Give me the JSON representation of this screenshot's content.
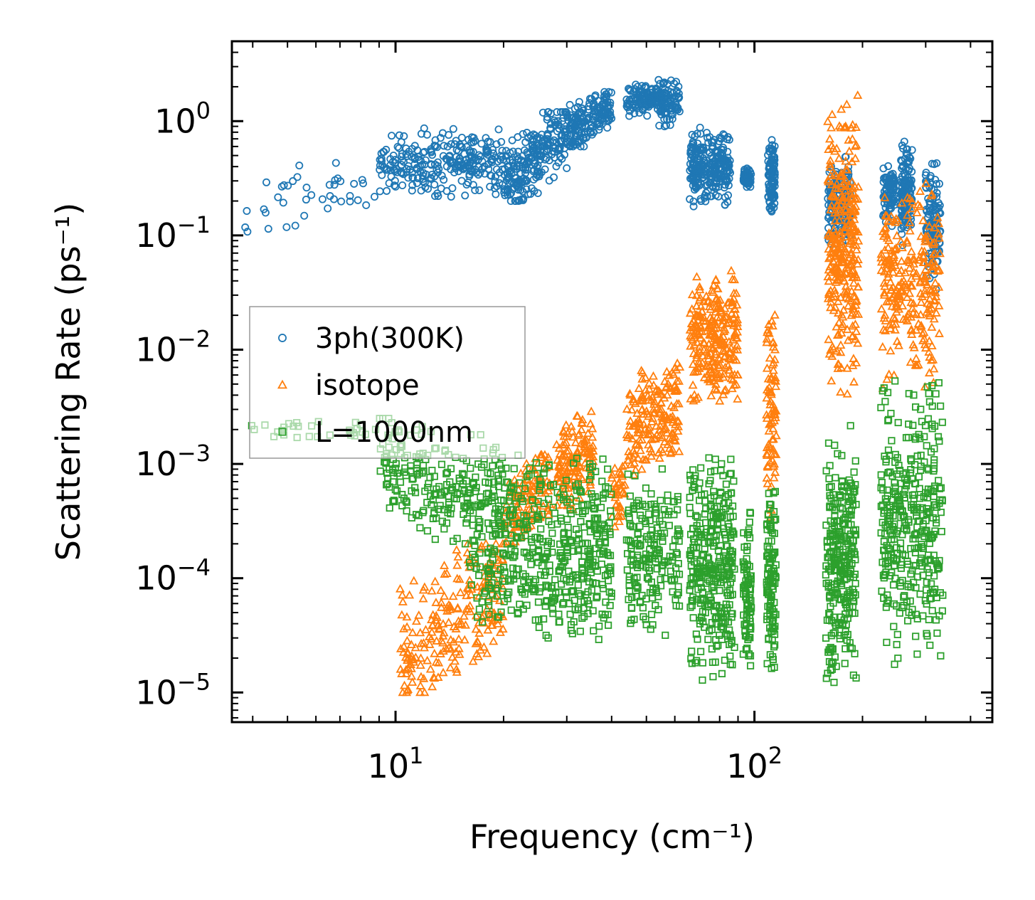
{
  "chart_data": {
    "type": "scatter",
    "xscale": "log",
    "yscale": "log",
    "xlim": [
      3.5,
      460
    ],
    "ylim": [
      5.5e-06,
      5.0
    ],
    "xlabel": "Frequency (cm⁻¹)",
    "ylabel": "Scattering Rate (ps⁻¹)",
    "x_ticks": [
      {
        "value": 10,
        "base": "10",
        "exp": "1"
      },
      {
        "value": 100,
        "base": "10",
        "exp": "2"
      }
    ],
    "y_ticks": [
      {
        "value": 1,
        "base": "10",
        "exp": "0"
      },
      {
        "value": 0.1,
        "base": "10",
        "exp": "−1"
      },
      {
        "value": 0.01,
        "base": "10",
        "exp": "−2"
      },
      {
        "value": 0.001,
        "base": "10",
        "exp": "−3"
      },
      {
        "value": 0.0001,
        "base": "10",
        "exp": "−4"
      },
      {
        "value": 1e-05,
        "base": "10",
        "exp": "−5"
      }
    ],
    "legend_position": "center-left",
    "series": [
      {
        "name": "3ph(300K)",
        "marker": "circle",
        "color": "#1f77b4",
        "bands": [
          {
            "x": [
              3.8,
              9
            ],
            "y": [
              0.09,
              0.45
            ],
            "n": 40,
            "trend": 0.7
          },
          {
            "x": [
              9,
              20
            ],
            "y": [
              0.2,
              0.9
            ],
            "n": 260,
            "trend": 0.2
          },
          {
            "x": [
              20,
              30
            ],
            "y": [
              0.2,
              1.2
            ],
            "n": 240,
            "trend": 1.2
          },
          {
            "x": [
              30,
              40
            ],
            "y": [
              0.6,
              1.8
            ],
            "n": 160,
            "trend": 1.0
          },
          {
            "x": [
              44,
              55
            ],
            "y": [
              1.1,
              2.2
            ],
            "n": 110,
            "trend": 0.3
          },
          {
            "x": [
              54,
              62
            ],
            "y": [
              0.9,
              2.7
            ],
            "n": 90,
            "trend": 0.3
          },
          {
            "x": [
              66,
              86
            ],
            "y": [
              0.17,
              0.9
            ],
            "n": 260,
            "trend": 0
          },
          {
            "x": [
              93,
              98
            ],
            "y": [
              0.25,
              0.4
            ],
            "n": 60,
            "trend": 0
          },
          {
            "x": [
              109,
              114
            ],
            "y": [
              0.15,
              0.75
            ],
            "n": 100,
            "trend": 0
          },
          {
            "x": [
              160,
              185
            ],
            "y": [
              0.07,
              0.5
            ],
            "n": 160,
            "trend": 0
          },
          {
            "x": [
              228,
              248
            ],
            "y": [
              0.11,
              0.45
            ],
            "n": 90,
            "trend": 0
          },
          {
            "x": [
              255,
              275
            ],
            "y": [
              0.08,
              0.75
            ],
            "n": 120,
            "trend": 0
          },
          {
            "x": [
              300,
              330
            ],
            "y": [
              0.03,
              0.5
            ],
            "n": 120,
            "trend": 0
          }
        ]
      },
      {
        "name": "isotope",
        "marker": "triangle",
        "color": "#ff7f0e",
        "bands": [
          {
            "x": [
              10.3,
              20
            ],
            "y": [
              1e-05,
              0.0002
            ],
            "n": 230,
            "trend": 1.0
          },
          {
            "x": [
              20,
              27
            ],
            "y": [
              0.0002,
              0.0012
            ],
            "n": 120,
            "trend": 1.0
          },
          {
            "x": [
              28,
              36
            ],
            "y": [
              0.0004,
              0.003
            ],
            "n": 140,
            "trend": 0.5
          },
          {
            "x": [
              40,
              44
            ],
            "y": [
              0.00025,
              0.0012
            ],
            "n": 40,
            "trend": 0
          },
          {
            "x": [
              44,
              62
            ],
            "y": [
              0.0008,
              0.008
            ],
            "n": 180,
            "trend": 0.5
          },
          {
            "x": [
              66,
              90
            ],
            "y": [
              0.003,
              0.05
            ],
            "n": 260,
            "trend": 0.2
          },
          {
            "x": [
              108,
              115
            ],
            "y": [
              0.0002,
              0.04
            ],
            "n": 80,
            "trend": 0
          },
          {
            "x": [
              160,
              195
            ],
            "y": [
              0.004,
              1.8
            ],
            "n": 300,
            "trend": 0
          },
          {
            "x": [
              225,
              330
            ],
            "y": [
              0.004,
              0.3
            ],
            "n": 260,
            "trend": 0
          }
        ]
      },
      {
        "name": "L=1000nm",
        "marker": "square",
        "color": "#2ca02c",
        "bands": [
          {
            "x": [
              3.9,
              9
            ],
            "y": [
              0.0015,
              0.0028
            ],
            "n": 30,
            "trend": -0.2
          },
          {
            "x": [
              9,
              16
            ],
            "y": [
              0.0002,
              0.0025
            ],
            "n": 170,
            "trend": -0.8
          },
          {
            "x": [
              16,
              28
            ],
            "y": [
              3e-05,
              0.0018
            ],
            "n": 320,
            "trend": -0.3
          },
          {
            "x": [
              28,
              40
            ],
            "y": [
              2.5e-05,
              0.0013
            ],
            "n": 230,
            "trend": 0
          },
          {
            "x": [
              44,
              62
            ],
            "y": [
              3e-05,
              0.0011
            ],
            "n": 190,
            "trend": 0
          },
          {
            "x": [
              66,
              88
            ],
            "y": [
              1e-05,
              0.0015
            ],
            "n": 320,
            "trend": 0
          },
          {
            "x": [
              93,
              98
            ],
            "y": [
              1.2e-05,
              0.0005
            ],
            "n": 80,
            "trend": 0
          },
          {
            "x": [
              108,
              115
            ],
            "y": [
              1.2e-05,
              0.0007
            ],
            "n": 110,
            "trend": 0
          },
          {
            "x": [
              158,
              192
            ],
            "y": [
              1e-05,
              0.0028
            ],
            "n": 280,
            "trend": 0
          },
          {
            "x": [
              225,
              335
            ],
            "y": [
              1.4e-05,
              0.007
            ],
            "n": 360,
            "trend": 0
          }
        ]
      }
    ]
  }
}
